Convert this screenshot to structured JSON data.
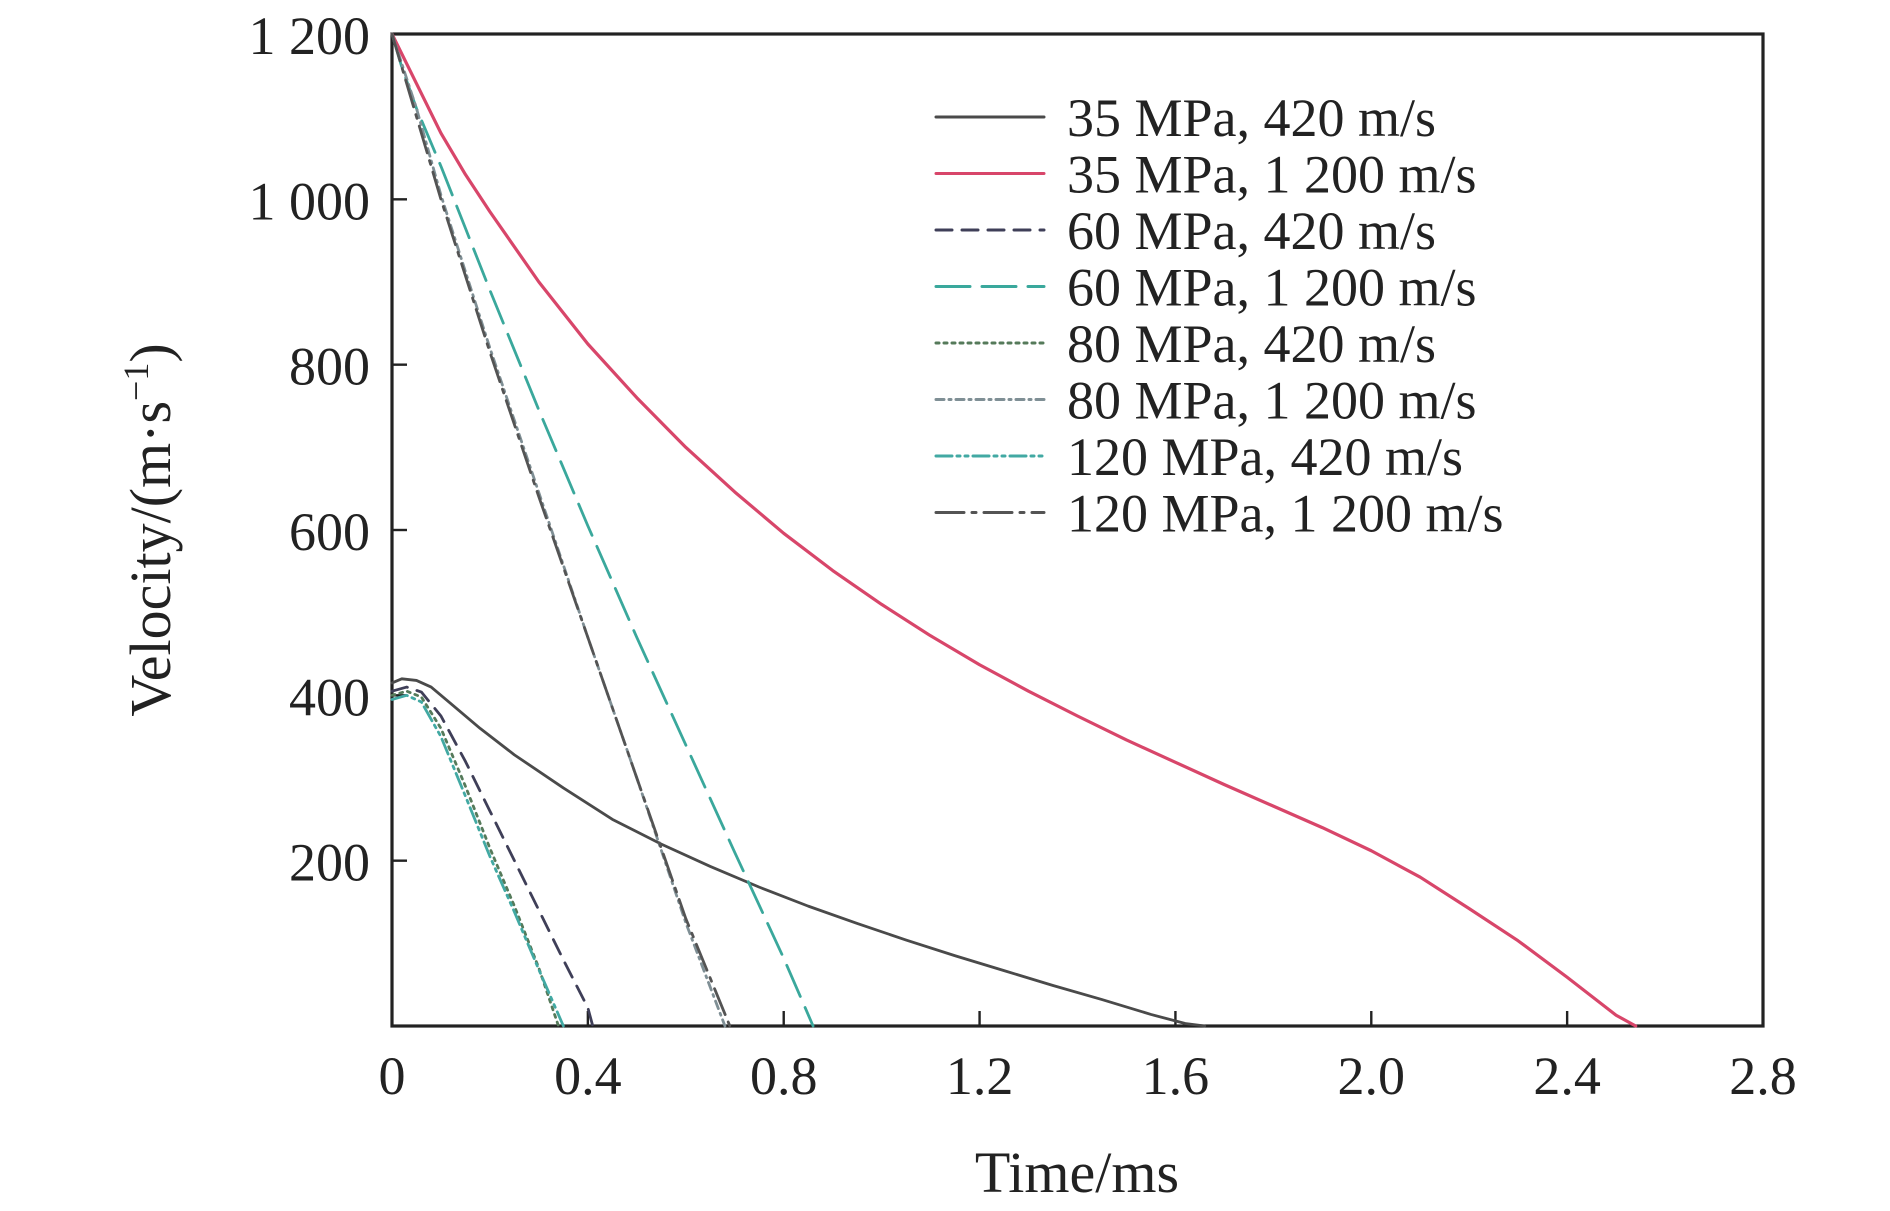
{
  "chart_data": {
    "type": "line",
    "xlabel": "Time/ms",
    "ylabel_main": "Velocity/(m·s",
    "ylabel_sup": "−1",
    "ylabel_close": ")",
    "xlim": [
      0,
      2.8
    ],
    "ylim": [
      0,
      1200
    ],
    "xticks": [
      {
        "value": 0,
        "label": "0"
      },
      {
        "value": 0.4,
        "label": "0.4"
      },
      {
        "value": 0.8,
        "label": "0.8"
      },
      {
        "value": 1.2,
        "label": "1.2"
      },
      {
        "value": 1.6,
        "label": "1.6"
      },
      {
        "value": 2.0,
        "label": "2.0"
      },
      {
        "value": 2.4,
        "label": "2.4"
      },
      {
        "value": 2.8,
        "label": "2.8"
      }
    ],
    "yticks": [
      {
        "value": 200,
        "label": "200"
      },
      {
        "value": 400,
        "label": "400"
      },
      {
        "value": 600,
        "label": "600"
      },
      {
        "value": 800,
        "label": "800"
      },
      {
        "value": 1000,
        "label": "1 000"
      },
      {
        "value": 1200,
        "label": "1 200"
      }
    ],
    "legend_position": "top-right",
    "grid": false,
    "series": [
      {
        "name": "35 MPa, 420 m/s",
        "color": "#4a4a4a",
        "dash": "",
        "x": [
          0,
          0.02,
          0.05,
          0.08,
          0.12,
          0.18,
          0.25,
          0.35,
          0.45,
          0.55,
          0.65,
          0.75,
          0.85,
          0.95,
          1.05,
          1.15,
          1.25,
          1.35,
          1.45,
          1.55,
          1.62,
          1.66
        ],
        "y": [
          415,
          420,
          418,
          410,
          390,
          360,
          328,
          288,
          250,
          220,
          193,
          168,
          145,
          124,
          104,
          85,
          67,
          49,
          32,
          14,
          3,
          0
        ]
      },
      {
        "name": "35 MPa, 1 200 m/s",
        "color": "#d8466a",
        "dash": "",
        "x": [
          0,
          0.05,
          0.1,
          0.15,
          0.2,
          0.3,
          0.4,
          0.5,
          0.6,
          0.7,
          0.8,
          0.9,
          1.0,
          1.1,
          1.2,
          1.3,
          1.4,
          1.5,
          1.6,
          1.7,
          1.8,
          1.9,
          2.0,
          2.1,
          2.2,
          2.3,
          2.4,
          2.5,
          2.54
        ],
        "y": [
          1200,
          1140,
          1080,
          1030,
          985,
          900,
          825,
          760,
          700,
          646,
          596,
          551,
          510,
          472,
          437,
          405,
          375,
          346,
          319,
          292,
          266,
          240,
          212,
          180,
          142,
          103,
          59,
          13,
          0
        ]
      },
      {
        "name": "60 MPa, 420 m/s",
        "color": "#3f3f58",
        "dash": "16 10",
        "x": [
          0,
          0.03,
          0.06,
          0.1,
          0.15,
          0.2,
          0.25,
          0.3,
          0.35,
          0.4,
          0.41
        ],
        "y": [
          405,
          410,
          404,
          375,
          320,
          260,
          200,
          140,
          80,
          22,
          0
        ]
      },
      {
        "name": "60 MPa, 1 200 m/s",
        "color": "#3aa89c",
        "dash": "34 12",
        "x": [
          0,
          0.02,
          0.05,
          0.1,
          0.15,
          0.2,
          0.3,
          0.4,
          0.5,
          0.6,
          0.7,
          0.8,
          0.86
        ],
        "y": [
          1200,
          1160,
          1110,
          1040,
          965,
          890,
          745,
          605,
          470,
          340,
          210,
          82,
          0
        ]
      },
      {
        "name": "80 MPa, 420 m/s",
        "color": "#557a5a",
        "dash": "3 5",
        "x": [
          0,
          0.03,
          0.06,
          0.1,
          0.15,
          0.2,
          0.25,
          0.3,
          0.34
        ],
        "y": [
          400,
          405,
          398,
          360,
          290,
          215,
          145,
          70,
          0
        ]
      },
      {
        "name": "80 MPa, 1 200 m/s",
        "color": "#7f8f95",
        "dash": "8 5 2 5",
        "x": [
          0,
          0.05,
          0.1,
          0.2,
          0.3,
          0.4,
          0.5,
          0.6,
          0.68
        ],
        "y": [
          1200,
          1110,
          1005,
          820,
          645,
          470,
          300,
          125,
          0
        ]
      },
      {
        "name": "120 MPa, 420 m/s",
        "color": "#42a9a3",
        "dash": "16 5 3 5 3 5",
        "x": [
          0,
          0.03,
          0.06,
          0.1,
          0.15,
          0.2,
          0.25,
          0.3,
          0.35
        ],
        "y": [
          395,
          400,
          392,
          350,
          278,
          205,
          138,
          68,
          0
        ]
      },
      {
        "name": "120 MPa, 1 200 m/s",
        "color": "#545454",
        "dash": "28 8 4 8",
        "x": [
          0,
          0.05,
          0.1,
          0.2,
          0.3,
          0.4,
          0.5,
          0.6,
          0.69
        ],
        "y": [
          1200,
          1100,
          1000,
          815,
          640,
          470,
          300,
          130,
          0
        ]
      }
    ]
  }
}
